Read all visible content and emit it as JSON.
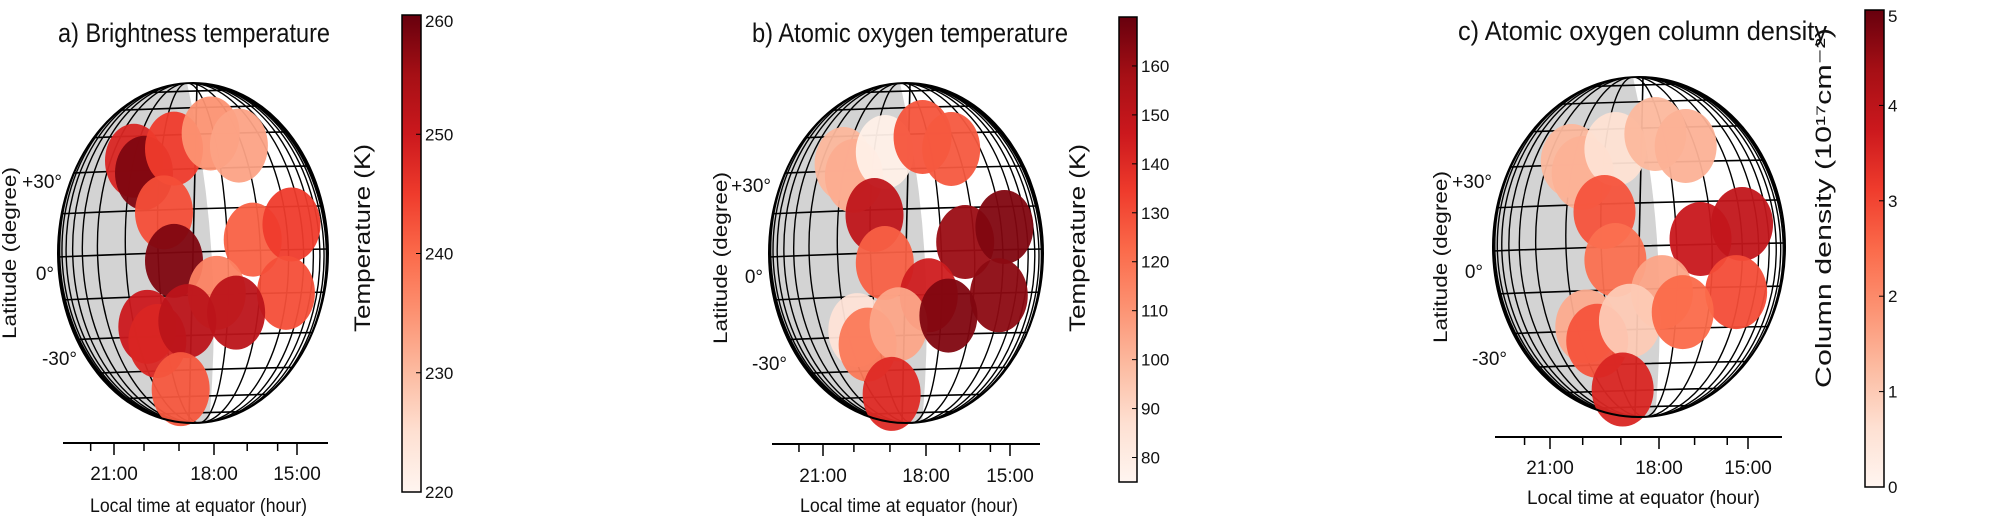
{
  "colormap": "Reds",
  "night_color": "#d3d3d3",
  "chart_data": [
    {
      "type": "scatter",
      "title": "a) Brightness temperature",
      "xlabel": "Local time at equator (hour)",
      "ylabel": "Latitude (degree)",
      "xticks": [
        "21:00",
        "18:00",
        "15:00"
      ],
      "yticks": [
        "+30°",
        "0°",
        "-30°"
      ],
      "colorbar": {
        "label": "Temperature (K)",
        "range": [
          220,
          260
        ],
        "ticks": [
          "220",
          "230",
          "240",
          "250",
          "260"
        ]
      },
      "points": [
        {
          "lt": 20.4,
          "lat": 37,
          "value": 248
        },
        {
          "lt": 20.1,
          "lat": 33,
          "value": 258
        },
        {
          "lt": 19.2,
          "lat": 41,
          "value": 245
        },
        {
          "lt": 18.1,
          "lat": 46,
          "value": 235
        },
        {
          "lt": 17.1,
          "lat": 42,
          "value": 233
        },
        {
          "lt": 19.5,
          "lat": 20,
          "value": 243
        },
        {
          "lt": 19.2,
          "lat": 4,
          "value": 258
        },
        {
          "lt": 16.6,
          "lat": 11,
          "value": 241
        },
        {
          "lt": 15.2,
          "lat": 16,
          "value": 245
        },
        {
          "lt": 17.9,
          "lat": -7,
          "value": 237
        },
        {
          "lt": 15.4,
          "lat": -7,
          "value": 243
        },
        {
          "lt": 20.0,
          "lat": -19,
          "value": 250
        },
        {
          "lt": 19.7,
          "lat": -24,
          "value": 248
        },
        {
          "lt": 18.8,
          "lat": -17,
          "value": 252
        },
        {
          "lt": 17.2,
          "lat": -14,
          "value": 252
        },
        {
          "lt": 19.0,
          "lat": -41,
          "value": 242
        }
      ]
    },
    {
      "type": "scatter",
      "title": "b) Atomic oxygen temperature",
      "xlabel": "Local time at equator (hour)",
      "ylabel": "Latitude (degree)",
      "xticks": [
        "21:00",
        "18:00",
        "15:00"
      ],
      "yticks": [
        "+30°",
        "0°",
        "-30°"
      ],
      "colorbar": {
        "label": "Temperature (K)",
        "range": [
          75,
          170
        ],
        "ticks": [
          "80",
          "90",
          "100",
          "110",
          "120",
          "130",
          "140",
          "150",
          "160"
        ]
      },
      "points": [
        {
          "lt": 20.4,
          "lat": 37,
          "value": 100
        },
        {
          "lt": 20.1,
          "lat": 33,
          "value": 103
        },
        {
          "lt": 19.2,
          "lat": 41,
          "value": 78
        },
        {
          "lt": 18.1,
          "lat": 46,
          "value": 128
        },
        {
          "lt": 17.1,
          "lat": 42,
          "value": 127
        },
        {
          "lt": 19.5,
          "lat": 20,
          "value": 150
        },
        {
          "lt": 19.2,
          "lat": 4,
          "value": 125
        },
        {
          "lt": 16.6,
          "lat": 11,
          "value": 160
        },
        {
          "lt": 15.2,
          "lat": 16,
          "value": 165
        },
        {
          "lt": 17.9,
          "lat": -7,
          "value": 145
        },
        {
          "lt": 15.4,
          "lat": -7,
          "value": 163
        },
        {
          "lt": 20.0,
          "lat": -19,
          "value": 85
        },
        {
          "lt": 19.7,
          "lat": -24,
          "value": 118
        },
        {
          "lt": 18.8,
          "lat": -17,
          "value": 105
        },
        {
          "lt": 17.2,
          "lat": -14,
          "value": 165
        },
        {
          "lt": 19.0,
          "lat": -41,
          "value": 140
        }
      ]
    },
    {
      "type": "scatter",
      "title": "c) Atomic oxygen column density",
      "xlabel": "Local time at equator (hour)",
      "ylabel": "Latitude (degree)",
      "xticks": [
        "21:00",
        "18:00",
        "15:00"
      ],
      "yticks": [
        "+30°",
        "0°",
        "-30°"
      ],
      "colorbar": {
        "label": "Column density (10¹⁷cm⁻²)",
        "range": [
          0,
          5
        ],
        "ticks": [
          "0",
          "1",
          "2",
          "3",
          "4",
          "5"
        ]
      },
      "points": [
        {
          "lt": 20.4,
          "lat": 37,
          "value": 1.3
        },
        {
          "lt": 20.1,
          "lat": 33,
          "value": 1.4
        },
        {
          "lt": 19.2,
          "lat": 41,
          "value": 0.6
        },
        {
          "lt": 18.1,
          "lat": 46,
          "value": 1.3
        },
        {
          "lt": 17.1,
          "lat": 42,
          "value": 1.4
        },
        {
          "lt": 19.5,
          "lat": 20,
          "value": 2.8
        },
        {
          "lt": 19.2,
          "lat": 4,
          "value": 2.4
        },
        {
          "lt": 16.6,
          "lat": 11,
          "value": 3.8
        },
        {
          "lt": 15.2,
          "lat": 16,
          "value": 3.9
        },
        {
          "lt": 17.9,
          "lat": -7,
          "value": 1.6
        },
        {
          "lt": 15.4,
          "lat": -7,
          "value": 2.9
        },
        {
          "lt": 20.0,
          "lat": -19,
          "value": 1.5
        },
        {
          "lt": 19.7,
          "lat": -24,
          "value": 2.8
        },
        {
          "lt": 18.8,
          "lat": -17,
          "value": 1.0
        },
        {
          "lt": 17.2,
          "lat": -14,
          "value": 2.5
        },
        {
          "lt": 19.0,
          "lat": -41,
          "value": 3.5
        }
      ]
    }
  ]
}
